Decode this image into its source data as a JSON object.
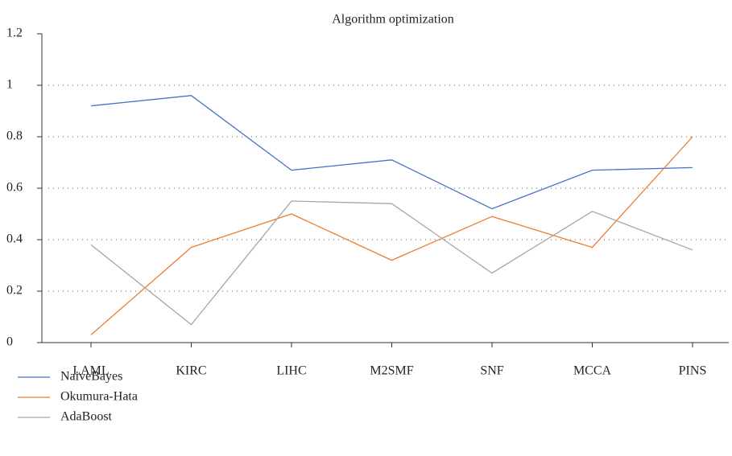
{
  "chart_data": {
    "type": "line",
    "title": "Algorithm optimization",
    "categories": [
      "LAML",
      "KIRC",
      "LIHC",
      "M2SMF",
      "SNF",
      "MCCA",
      "PINS"
    ],
    "series": [
      {
        "name": "NaiveBayes",
        "color": "#4472c4",
        "values": [
          0.92,
          0.96,
          0.67,
          0.71,
          0.52,
          0.67,
          0.68
        ]
      },
      {
        "name": "Okumura-Hata",
        "color": "#ed7d31",
        "values": [
          0.03,
          0.37,
          0.5,
          0.32,
          0.49,
          0.37,
          0.8
        ]
      },
      {
        "name": "AdaBoost",
        "color": "#a5a5a5",
        "values": [
          0.38,
          0.07,
          0.55,
          0.54,
          0.27,
          0.51,
          0.36
        ]
      }
    ],
    "ylim": [
      0,
      1.2
    ],
    "yticks": [
      0,
      0.2,
      0.4,
      0.6,
      0.8,
      1,
      1.2
    ],
    "grid": true,
    "legend": "bottom-left"
  }
}
